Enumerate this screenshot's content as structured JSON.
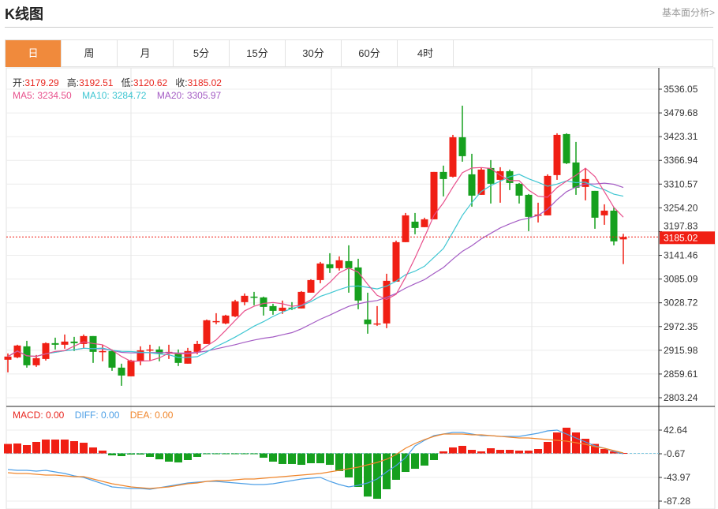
{
  "header": {
    "title": "K线图",
    "link": "基本面分析>"
  },
  "tabs": [
    {
      "label": "日",
      "active": true
    },
    {
      "label": "周"
    },
    {
      "label": "月"
    },
    {
      "label": "5分"
    },
    {
      "label": "15分"
    },
    {
      "label": "30分"
    },
    {
      "label": "60分"
    },
    {
      "label": "4时"
    }
  ],
  "legend": {
    "open_label": "开:",
    "open": "3179.29",
    "high_label": "高:",
    "high": "3192.51",
    "low_label": "低:",
    "low": "3120.62",
    "close_label": "收:",
    "close": "3185.02",
    "ma5": "MA5: 3234.50",
    "ma10": "MA10: 3284.72",
    "ma20": "MA20: 3305.97"
  },
  "macd_legend": {
    "macd": "MACD: 0.00",
    "diff": "DIFF: 0.00",
    "dea": "DEA: 0.00"
  },
  "colors": {
    "up": "#f01f14",
    "down": "#16a01e",
    "ma5": "#e8508c",
    "ma10": "#3ec6d2",
    "ma20": "#a45cc4",
    "diff": "#4d9fe6",
    "dea": "#f0862c",
    "accent": "#f08a3c"
  },
  "chart_data": {
    "type": "candlestick",
    "price_axis_ticks": [
      "3536.05",
      "3479.68",
      "3423.31",
      "3366.94",
      "3310.57",
      "3254.20",
      "3197.83",
      "3141.46",
      "3085.09",
      "3028.72",
      "2972.35",
      "2915.98",
      "2859.61",
      "2803.24"
    ],
    "price_range": [
      2803.24,
      3536.05
    ],
    "last_price": "3185.02",
    "macd_axis_ticks": [
      "42.64",
      "-0.67",
      "-43.97",
      "-87.28"
    ],
    "macd_range": [
      -87.28,
      42.64
    ],
    "ohlc": [
      [
        2893.5,
        2908.4,
        2863.5,
        2901.0
      ],
      [
        2899.1,
        2929.1,
        2897.2,
        2927.2
      ],
      [
        2925.3,
        2938.4,
        2874.7,
        2880.3
      ],
      [
        2880.3,
        2904.7,
        2876.6,
        2897.2
      ],
      [
        2895.3,
        2934.7,
        2891.6,
        2932.8
      ],
      [
        2932.8,
        2945.9,
        2917.8,
        2929.1
      ],
      [
        2929.1,
        2953.4,
        2919.7,
        2936.6
      ],
      [
        2936.6,
        2947.8,
        2914.1,
        2932.8
      ],
      [
        2930.9,
        2953.4,
        2919.7,
        2949.7
      ],
      [
        2949.7,
        2949.7,
        2886.0,
        2912.2
      ],
      [
        2912.2,
        2929.1,
        2889.7,
        2914.1
      ],
      [
        2914.1,
        2917.8,
        2867.2,
        2874.7
      ],
      [
        2874.7,
        2884.1,
        2831.6,
        2856.0
      ],
      [
        2854.1,
        2893.5,
        2854.1,
        2891.6
      ],
      [
        2889.7,
        2925.3,
        2880.3,
        2915.9
      ],
      [
        2915.9,
        2929.1,
        2891.6,
        2917.8
      ],
      [
        2917.8,
        2925.3,
        2889.7,
        2908.4
      ],
      [
        2910.3,
        2929.1,
        2895.3,
        2912.2
      ],
      [
        2908.4,
        2917.8,
        2878.5,
        2886.0
      ],
      [
        2884.1,
        2921.6,
        2884.1,
        2914.1
      ],
      [
        2912.2,
        2938.4,
        2906.6,
        2930.9
      ],
      [
        2930.9,
        2989.0,
        2930.9,
        2987.2
      ],
      [
        2983.4,
        3004.0,
        2977.8,
        2985.3
      ],
      [
        2979.7,
        3000.3,
        2977.8,
        2998.4
      ],
      [
        2996.5,
        3035.9,
        2994.7,
        3032.1
      ],
      [
        3030.3,
        3050.9,
        3022.8,
        3045.3
      ],
      [
        3043.4,
        3054.6,
        3022.8,
        3041.5
      ],
      [
        3041.5,
        3043.4,
        2998.4,
        3019.0
      ],
      [
        3020.9,
        3026.5,
        3000.3,
        3009.6
      ],
      [
        3009.6,
        3034.0,
        3002.2,
        3017.1
      ],
      [
        3017.1,
        3030.3,
        3011.5,
        3015.3
      ],
      [
        3015.3,
        3056.5,
        3015.3,
        3054.6
      ],
      [
        3052.7,
        3084.6,
        3052.7,
        3082.7
      ],
      [
        3082.7,
        3125.8,
        3075.2,
        3122.1
      ],
      [
        3120.2,
        3146.4,
        3099.6,
        3110.8
      ],
      [
        3110.8,
        3138.9,
        3105.2,
        3129.6
      ],
      [
        3127.7,
        3165.2,
        3052.7,
        3110.8
      ],
      [
        3112.7,
        3133.3,
        3013.4,
        3034.0
      ],
      [
        2989.0,
        3052.7,
        2955.3,
        2977.8
      ],
      [
        2977.8,
        3020.9,
        2974.0,
        2979.7
      ],
      [
        2979.7,
        3097.7,
        2968.4,
        3080.9
      ],
      [
        3079.0,
        3176.4,
        3079.0,
        3172.7
      ],
      [
        3172.7,
        3242.0,
        3172.7,
        3236.4
      ],
      [
        3221.4,
        3242.0,
        3191.4,
        3206.4
      ],
      [
        3208.3,
        3230.8,
        3208.3,
        3227.0
      ],
      [
        3227.0,
        3339.5,
        3227.0,
        3339.5
      ],
      [
        3339.5,
        3354.5,
        3281.4,
        3322.6
      ],
      [
        3328.2,
        3427.5,
        3326.4,
        3421.9
      ],
      [
        3421.9,
        3496.9,
        3363.8,
        3376.9
      ],
      [
        3333.8,
        3382.6,
        3257.0,
        3283.2
      ],
      [
        3285.1,
        3348.8,
        3285.1,
        3345.1
      ],
      [
        3348.8,
        3367.6,
        3264.5,
        3311.4
      ],
      [
        3320.7,
        3350.7,
        3266.4,
        3341.3
      ],
      [
        3341.3,
        3345.1,
        3296.4,
        3313.2
      ],
      [
        3311.4,
        3313.2,
        3264.5,
        3283.2
      ],
      [
        3285.1,
        3287.0,
        3198.9,
        3232.7
      ],
      [
        3236.4,
        3266.4,
        3219.5,
        3238.3
      ],
      [
        3236.4,
        3333.8,
        3236.4,
        3330.1
      ],
      [
        3332.0,
        3431.3,
        3320.7,
        3427.5
      ],
      [
        3429.4,
        3431.3,
        3358.2,
        3360.1
      ],
      [
        3362.0,
        3410.7,
        3285.1,
        3302.0
      ],
      [
        3303.9,
        3347.0,
        3272.0,
        3322.6
      ],
      [
        3294.5,
        3294.5,
        3204.5,
        3230.8
      ],
      [
        3236.4,
        3262.6,
        3213.9,
        3247.6
      ],
      [
        3247.6,
        3255.1,
        3165.2,
        3174.6
      ],
      [
        3179.29,
        3192.51,
        3120.62,
        3185.02
      ]
    ],
    "macd_hist": [
      17.3,
      18.1,
      15.2,
      21.0,
      25.3,
      25.3,
      25.3,
      22.4,
      19.5,
      10.9,
      5.1,
      -3.6,
      -5.0,
      -2.1,
      -2.1,
      -6.4,
      -10.8,
      -15.1,
      -16.5,
      -12.2,
      -6.4,
      -0.7,
      -0.7,
      -0.7,
      -0.3,
      -0.3,
      -0.7,
      -7.9,
      -15.1,
      -19.4,
      -19.4,
      -20.9,
      -18.0,
      -18.0,
      -20.9,
      -32.4,
      -44.0,
      -61.3,
      -79.0,
      -83.0,
      -65.6,
      -48.3,
      -33.9,
      -28.1,
      -22.3,
      -12.2,
      3.7,
      10.9,
      13.8,
      6.5,
      3.7,
      9.4,
      6.5,
      6.5,
      5.1,
      5.1,
      8.0,
      21.0,
      38.3,
      47.0,
      38.3,
      26.8,
      17.3,
      8.0,
      3.7,
      0.8
    ],
    "diff": [
      -29.5,
      -31.0,
      -31.0,
      -32.4,
      -31.0,
      -33.9,
      -36.8,
      -41.1,
      -44.0,
      -49.8,
      -55.5,
      -61.3,
      -62.7,
      -64.2,
      -64.2,
      -65.6,
      -62.7,
      -59.9,
      -57.0,
      -54.1,
      -52.6,
      -51.2,
      -51.2,
      -52.6,
      -54.1,
      -55.5,
      -57.0,
      -57.0,
      -55.5,
      -52.6,
      -49.8,
      -46.9,
      -45.4,
      -44.0,
      -51.2,
      -57.0,
      -61.3,
      -58.4,
      -54.1,
      -46.9,
      -33.9,
      -22.3,
      -7.9,
      13.8,
      23.9,
      32.5,
      35.4,
      38.3,
      38.3,
      35.4,
      32.5,
      32.5,
      31.1,
      31.1,
      31.1,
      34.0,
      36.9,
      41.2,
      42.6,
      35.4,
      28.2,
      21.0,
      13.8,
      9.4,
      3.7,
      -0.7
    ],
    "dea": [
      -35.3,
      -36.8,
      -36.8,
      -38.2,
      -39.6,
      -39.6,
      -41.1,
      -42.5,
      -42.5,
      -46.9,
      -51.2,
      -55.5,
      -58.4,
      -61.3,
      -62.7,
      -64.2,
      -62.7,
      -61.3,
      -58.4,
      -55.5,
      -54.1,
      -51.2,
      -49.8,
      -49.8,
      -48.3,
      -46.9,
      -46.9,
      -45.4,
      -44.0,
      -42.5,
      -41.1,
      -39.6,
      -38.2,
      -36.8,
      -33.9,
      -31.0,
      -28.1,
      -25.2,
      -20.9,
      -16.5,
      -10.8,
      -2.1,
      9.4,
      18.1,
      25.3,
      31.1,
      35.4,
      35.4,
      35.4,
      34.0,
      34.0,
      32.5,
      31.1,
      29.6,
      28.2,
      28.2,
      26.8,
      25.3,
      23.9,
      22.4,
      19.5,
      16.6,
      12.3,
      9.4,
      5.1,
      0.8
    ]
  }
}
